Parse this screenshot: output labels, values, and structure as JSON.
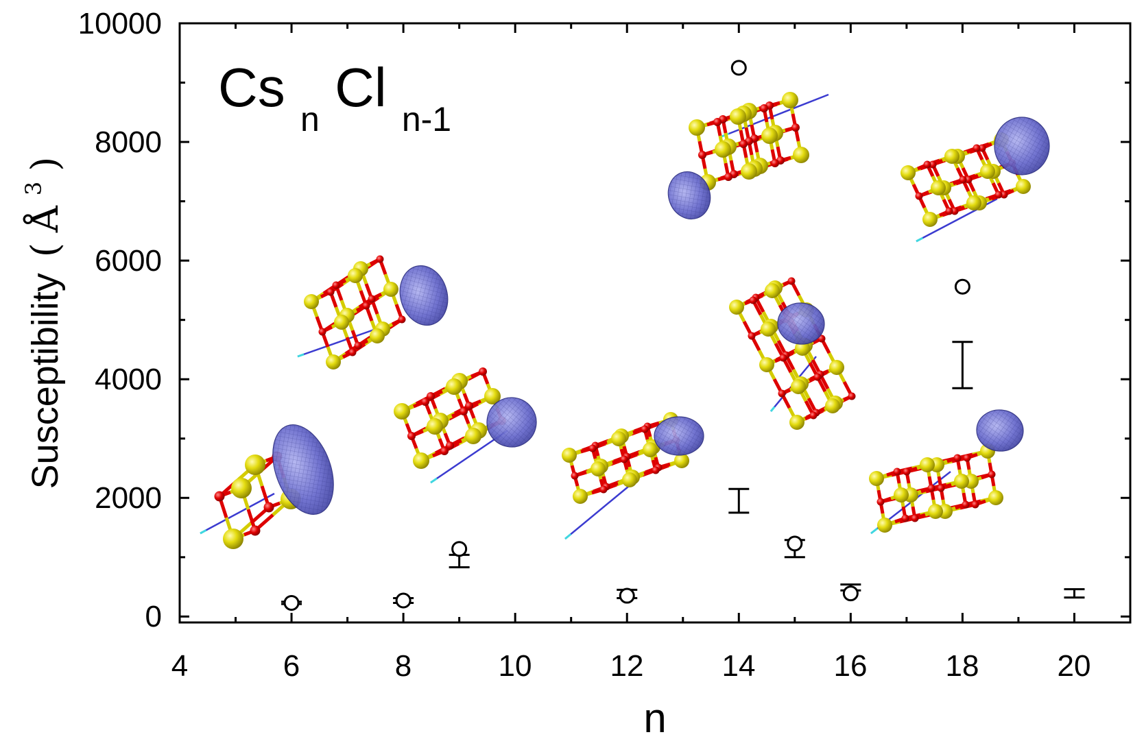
{
  "chart_data": {
    "type": "scatter",
    "title": "",
    "xlabel": "n",
    "ylabel": "Susceptibility (Å³)",
    "ylabel_main": "Susceptibility",
    "ylabel_open": "(",
    "ylabel_unit": "Å",
    "ylabel_exp": "3",
    "ylabel_close": ")",
    "annotation": {
      "parts": [
        "Cs",
        "n",
        "Cl",
        "n-1"
      ],
      "text": "CsnCln-1"
    },
    "xlim": [
      4,
      21
    ],
    "ylim": [
      -100,
      10000
    ],
    "xticks": [
      "4",
      "6",
      "8",
      "10",
      "12",
      "14",
      "16",
      "18",
      "20"
    ],
    "yticks": [
      "0",
      "2000",
      "4000",
      "6000",
      "8000",
      "10000"
    ],
    "grid": false,
    "marker_color": "#000000",
    "series": [
      {
        "marker": "open-circle",
        "x": [
          6,
          8,
          9,
          12,
          14,
          15,
          16,
          18
        ],
        "y": [
          230,
          270,
          1140,
          350,
          9250,
          1230,
          390,
          5560
        ]
      },
      {
        "marker": "error-bar",
        "x": [
          6,
          8,
          9,
          12,
          14,
          15,
          16,
          18,
          20
        ],
        "low": [
          210,
          230,
          830,
          310,
          1750,
          1000,
          440,
          3850,
          320
        ],
        "high": [
          250,
          310,
          1040,
          450,
          2150,
          1290,
          540,
          4630,
          460
        ]
      }
    ],
    "structure_insets": [
      {
        "n": "5",
        "color_cs": "#d4cc00",
        "color_cl": "#dd0000",
        "color_orbital": "#5a5cc0"
      },
      {
        "n": "7",
        "color_cs": "#d4cc00",
        "color_cl": "#dd0000",
        "color_orbital": "#5a5cc0"
      },
      {
        "n": "9",
        "color_cs": "#d4cc00",
        "color_cl": "#dd0000",
        "color_orbital": "#5a5cc0"
      },
      {
        "n": "12",
        "color_cs": "#d4cc00",
        "color_cl": "#dd0000",
        "color_orbital": "#5a5cc0"
      },
      {
        "n": "14",
        "color_cs": "#d4cc00",
        "color_cl": "#dd0000",
        "color_orbital": "#5a5cc0"
      },
      {
        "n": "15",
        "color_cs": "#d4cc00",
        "color_cl": "#dd0000",
        "color_orbital": "#5a5cc0"
      },
      {
        "n": "16",
        "color_cs": "#d4cc00",
        "color_cl": "#dd0000",
        "color_orbital": "#5a5cc0"
      },
      {
        "n": "18",
        "color_cs": "#d4cc00",
        "color_cl": "#dd0000",
        "color_orbital": "#5a5cc0"
      }
    ]
  }
}
